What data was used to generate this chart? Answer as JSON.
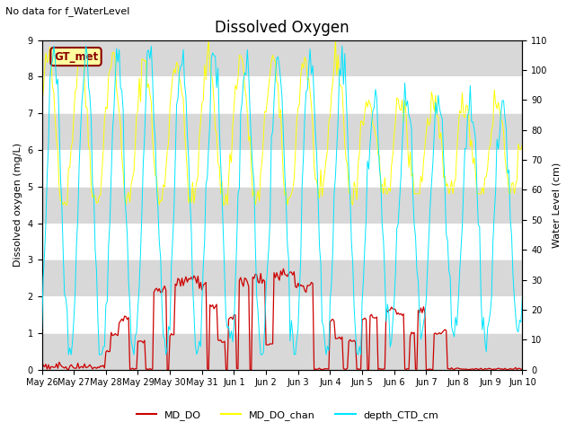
{
  "title": "Dissolved Oxygen",
  "note": "No data for f_WaterLevel",
  "ylabel_left": "Dissolved oxygen (mg/L)",
  "ylabel_right": "Water Level (cm)",
  "ylim_left": [
    0.0,
    9.0
  ],
  "ylim_right": [
    0,
    110
  ],
  "yticks_left": [
    0.0,
    1.0,
    2.0,
    3.0,
    4.0,
    5.0,
    6.0,
    7.0,
    8.0,
    9.0
  ],
  "yticks_right": [
    0,
    10,
    20,
    30,
    40,
    50,
    60,
    70,
    80,
    90,
    100,
    110
  ],
  "color_MD_DO": "#cc0000",
  "color_MD_DO_chan": "#ffff00",
  "color_depth_CTD_cm": "#00e5ff",
  "legend_label_1": "MD_DO",
  "legend_label_2": "MD_DO_chan",
  "legend_label_3": "depth_CTD_cm",
  "bg_band_color": "#d8d8d8",
  "gt_met_box_facecolor": "#ffffa0",
  "gt_met_box_edgecolor": "#8b0000",
  "gt_met_text": "GT_met",
  "gt_met_text_color": "#8b0000",
  "title_fontsize": 12,
  "label_fontsize": 8,
  "tick_fontsize": 7,
  "note_fontsize": 8,
  "legend_fontsize": 8
}
